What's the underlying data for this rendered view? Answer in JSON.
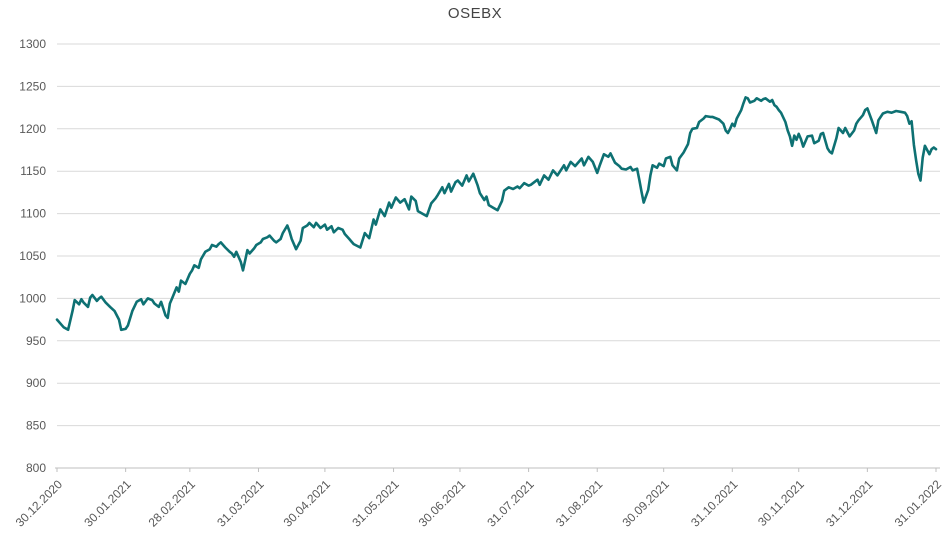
{
  "chart": {
    "title": "OSEBX",
    "colors": {
      "line": "#0e7173",
      "grid": "#d9d9d9",
      "axis": "#bfbfbf",
      "tick_label": "#595959",
      "title": "#444444"
    }
  },
  "chart_data": {
    "type": "line",
    "title": "OSEBX",
    "xlabel": "",
    "ylabel": "",
    "grid": true,
    "legend": false,
    "ylim": [
      800,
      1300
    ],
    "yticks": [
      800,
      850,
      900,
      950,
      1000,
      1050,
      1100,
      1150,
      1200,
      1250,
      1300
    ],
    "ytick_labels": [
      "800",
      "850",
      "900",
      "950",
      "1000",
      "1050",
      "1100",
      "1150",
      "1200",
      "1250",
      "1300"
    ],
    "xlim": [
      0,
      397
    ],
    "x_tick_days": [
      0,
      31,
      60,
      91,
      121,
      152,
      182,
      213,
      244,
      274,
      305,
      335,
      366,
      397
    ],
    "x_tick_labels": [
      "30.12.2020",
      "30.01.2021",
      "28.02.2021",
      "31.03.2021",
      "30.04.2021",
      "31.05.2021",
      "30.06.2021",
      "31.07.2021",
      "31.08.2021",
      "30.09.2021",
      "31.10.2021",
      "30.11.2021",
      "31.12.2021",
      "31.01.2022"
    ],
    "series": [
      {
        "name": "OSEBX",
        "points": [
          [
            0,
            975
          ],
          [
            2,
            969
          ],
          [
            3,
            966
          ],
          [
            5,
            963
          ],
          [
            7,
            985
          ],
          [
            8,
            998
          ],
          [
            10,
            993
          ],
          [
            11,
            999
          ],
          [
            12,
            995
          ],
          [
            14,
            990
          ],
          [
            15,
            1001
          ],
          [
            16,
            1004
          ],
          [
            18,
            997
          ],
          [
            19,
            1000
          ],
          [
            20,
            1002
          ],
          [
            22,
            995
          ],
          [
            24,
            990
          ],
          [
            26,
            985
          ],
          [
            28,
            975
          ],
          [
            29,
            963
          ],
          [
            31,
            964
          ],
          [
            32,
            968
          ],
          [
            34,
            985
          ],
          [
            36,
            996
          ],
          [
            38,
            999
          ],
          [
            39,
            993
          ],
          [
            41,
            1000
          ],
          [
            43,
            998
          ],
          [
            44,
            994
          ],
          [
            46,
            990
          ],
          [
            47,
            996
          ],
          [
            49,
            980
          ],
          [
            50,
            977
          ],
          [
            51,
            994
          ],
          [
            52,
            1000
          ],
          [
            54,
            1013
          ],
          [
            55,
            1008
          ],
          [
            56,
            1021
          ],
          [
            58,
            1017
          ],
          [
            60,
            1029
          ],
          [
            61,
            1033
          ],
          [
            62,
            1039
          ],
          [
            64,
            1036
          ],
          [
            65,
            1046
          ],
          [
            67,
            1055
          ],
          [
            69,
            1058
          ],
          [
            70,
            1063
          ],
          [
            72,
            1061
          ],
          [
            73,
            1064
          ],
          [
            74,
            1066
          ],
          [
            76,
            1060
          ],
          [
            78,
            1055
          ],
          [
            79,
            1053
          ],
          [
            80,
            1049
          ],
          [
            81,
            1055
          ],
          [
            83,
            1043
          ],
          [
            84,
            1033
          ],
          [
            86,
            1057
          ],
          [
            87,
            1053
          ],
          [
            89,
            1059
          ],
          [
            90,
            1063
          ],
          [
            92,
            1066
          ],
          [
            93,
            1070
          ],
          [
            95,
            1072
          ],
          [
            96,
            1074
          ],
          [
            98,
            1068
          ],
          [
            99,
            1066
          ],
          [
            101,
            1070
          ],
          [
            102,
            1077
          ],
          [
            104,
            1086
          ],
          [
            105,
            1079
          ],
          [
            106,
            1070
          ],
          [
            108,
            1058
          ],
          [
            110,
            1068
          ],
          [
            111,
            1083
          ],
          [
            113,
            1086
          ],
          [
            114,
            1089
          ],
          [
            116,
            1084
          ],
          [
            117,
            1089
          ],
          [
            119,
            1083
          ],
          [
            121,
            1087
          ],
          [
            122,
            1081
          ],
          [
            124,
            1085
          ],
          [
            125,
            1078
          ],
          [
            127,
            1083
          ],
          [
            129,
            1081
          ],
          [
            130,
            1076
          ],
          [
            132,
            1070
          ],
          [
            133,
            1067
          ],
          [
            134,
            1064
          ],
          [
            137,
            1060
          ],
          [
            139,
            1077
          ],
          [
            141,
            1071
          ],
          [
            143,
            1093
          ],
          [
            144,
            1087
          ],
          [
            146,
            1105
          ],
          [
            148,
            1097
          ],
          [
            150,
            1113
          ],
          [
            151,
            1107
          ],
          [
            153,
            1119
          ],
          [
            155,
            1113
          ],
          [
            157,
            1117
          ],
          [
            159,
            1105
          ],
          [
            160,
            1120
          ],
          [
            162,
            1115
          ],
          [
            163,
            1103
          ],
          [
            165,
            1100
          ],
          [
            167,
            1097
          ],
          [
            169,
            1112
          ],
          [
            171,
            1118
          ],
          [
            172,
            1122
          ],
          [
            174,
            1131
          ],
          [
            175,
            1124
          ],
          [
            177,
            1135
          ],
          [
            178,
            1126
          ],
          [
            180,
            1137
          ],
          [
            181,
            1139
          ],
          [
            183,
            1133
          ],
          [
            185,
            1145
          ],
          [
            186,
            1138
          ],
          [
            188,
            1147
          ],
          [
            190,
            1133
          ],
          [
            191,
            1124
          ],
          [
            193,
            1116
          ],
          [
            194,
            1120
          ],
          [
            195,
            1110
          ],
          [
            197,
            1107
          ],
          [
            199,
            1104
          ],
          [
            201,
            1115
          ],
          [
            202,
            1127
          ],
          [
            204,
            1131
          ],
          [
            206,
            1129
          ],
          [
            208,
            1132
          ],
          [
            209,
            1130
          ],
          [
            211,
            1136
          ],
          [
            213,
            1133
          ],
          [
            214,
            1134
          ],
          [
            217,
            1140
          ],
          [
            218,
            1134
          ],
          [
            220,
            1145
          ],
          [
            222,
            1140
          ],
          [
            224,
            1151
          ],
          [
            226,
            1145
          ],
          [
            229,
            1157
          ],
          [
            230,
            1151
          ],
          [
            232,
            1161
          ],
          [
            234,
            1156
          ],
          [
            237,
            1165
          ],
          [
            238,
            1157
          ],
          [
            240,
            1167
          ],
          [
            242,
            1161
          ],
          [
            244,
            1148
          ],
          [
            245,
            1156
          ],
          [
            247,
            1170
          ],
          [
            249,
            1167
          ],
          [
            250,
            1171
          ],
          [
            252,
            1160
          ],
          [
            254,
            1156
          ],
          [
            255,
            1153
          ],
          [
            257,
            1152
          ],
          [
            259,
            1155
          ],
          [
            260,
            1151
          ],
          [
            262,
            1153
          ],
          [
            263,
            1140
          ],
          [
            264,
            1126
          ],
          [
            265,
            1113
          ],
          [
            267,
            1128
          ],
          [
            268,
            1145
          ],
          [
            269,
            1157
          ],
          [
            271,
            1154
          ],
          [
            272,
            1159
          ],
          [
            274,
            1156
          ],
          [
            275,
            1165
          ],
          [
            277,
            1167
          ],
          [
            278,
            1157
          ],
          [
            280,
            1151
          ],
          [
            281,
            1165
          ],
          [
            283,
            1172
          ],
          [
            285,
            1182
          ],
          [
            286,
            1195
          ],
          [
            287,
            1200
          ],
          [
            289,
            1201
          ],
          [
            290,
            1208
          ],
          [
            292,
            1212
          ],
          [
            293,
            1215
          ],
          [
            295,
            1214
          ],
          [
            296,
            1214
          ],
          [
            298,
            1212
          ],
          [
            299,
            1211
          ],
          [
            301,
            1206
          ],
          [
            302,
            1198
          ],
          [
            303,
            1195
          ],
          [
            304,
            1200
          ],
          [
            305,
            1206
          ],
          [
            306,
            1203
          ],
          [
            307,
            1212
          ],
          [
            309,
            1222
          ],
          [
            310,
            1230
          ],
          [
            311,
            1237
          ],
          [
            312,
            1236
          ],
          [
            313,
            1231
          ],
          [
            315,
            1233
          ],
          [
            316,
            1236
          ],
          [
            318,
            1233
          ],
          [
            319,
            1235
          ],
          [
            320,
            1236
          ],
          [
            322,
            1232
          ],
          [
            323,
            1234
          ],
          [
            324,
            1228
          ],
          [
            325,
            1226
          ],
          [
            326,
            1222
          ],
          [
            327,
            1219
          ],
          [
            329,
            1208
          ],
          [
            330,
            1198
          ],
          [
            331,
            1191
          ],
          [
            332,
            1180
          ],
          [
            333,
            1192
          ],
          [
            334,
            1187
          ],
          [
            335,
            1194
          ],
          [
            336,
            1188
          ],
          [
            337,
            1179
          ],
          [
            339,
            1191
          ],
          [
            341,
            1192
          ],
          [
            342,
            1183
          ],
          [
            344,
            1186
          ],
          [
            345,
            1194
          ],
          [
            346,
            1195
          ],
          [
            348,
            1177
          ],
          [
            349,
            1173
          ],
          [
            350,
            1171
          ],
          [
            352,
            1189
          ],
          [
            353,
            1201
          ],
          [
            355,
            1195
          ],
          [
            356,
            1201
          ],
          [
            358,
            1191
          ],
          [
            360,
            1198
          ],
          [
            361,
            1206
          ],
          [
            362,
            1210
          ],
          [
            364,
            1216
          ],
          [
            365,
            1222
          ],
          [
            366,
            1224
          ],
          [
            368,
            1210
          ],
          [
            370,
            1195
          ],
          [
            371,
            1210
          ],
          [
            373,
            1218
          ],
          [
            375,
            1220
          ],
          [
            377,
            1219
          ],
          [
            379,
            1221
          ],
          [
            381,
            1220
          ],
          [
            383,
            1219
          ],
          [
            384,
            1215
          ],
          [
            385,
            1206
          ],
          [
            386,
            1209
          ],
          [
            387,
            1181
          ],
          [
            388,
            1163
          ],
          [
            389,
            1147
          ],
          [
            390,
            1139
          ],
          [
            391,
            1166
          ],
          [
            392,
            1180
          ],
          [
            394,
            1170
          ],
          [
            395,
            1176
          ],
          [
            396,
            1178
          ],
          [
            397,
            1176
          ]
        ]
      }
    ]
  }
}
